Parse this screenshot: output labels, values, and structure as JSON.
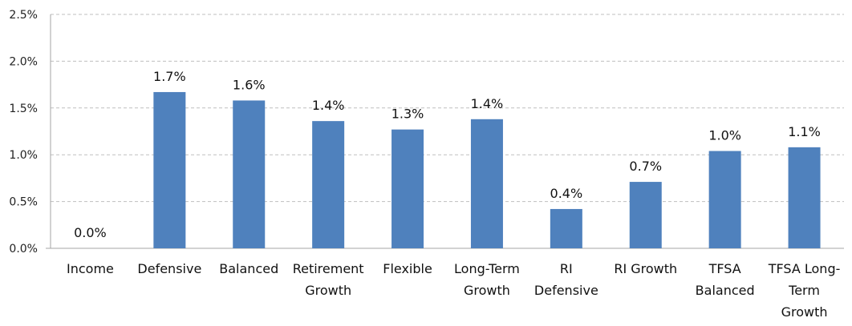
{
  "chart_data": {
    "type": "bar",
    "categories": [
      [
        "Income"
      ],
      [
        "Defensive"
      ],
      [
        "Balanced"
      ],
      [
        "Retirement",
        "Growth"
      ],
      [
        "Flexible"
      ],
      [
        "Long-Term",
        "Growth"
      ],
      [
        "RI",
        "Defensive"
      ],
      [
        "RI Growth"
      ],
      [
        "TFSA",
        "Balanced"
      ],
      [
        "TFSA Long-",
        "Term",
        "Growth"
      ]
    ],
    "values": [
      0.0,
      1.67,
      1.58,
      1.36,
      1.27,
      1.38,
      0.42,
      0.71,
      1.04,
      1.08
    ],
    "data_labels": [
      "0.0%",
      "1.7%",
      "1.6%",
      "1.4%",
      "1.3%",
      "1.4%",
      "0.4%",
      "0.7%",
      "1.0%",
      "1.1%"
    ],
    "y_ticks": [
      "0.0%",
      "0.5%",
      "1.0%",
      "1.5%",
      "2.0%",
      "2.5%"
    ],
    "y_tick_values": [
      0,
      0.5,
      1.0,
      1.5,
      2.0,
      2.5
    ],
    "ylim": [
      0,
      2.5
    ],
    "grid": "horizontal dashed",
    "legend": "none",
    "colors": {
      "bar": "#4F81BD",
      "grid": "#BFBFBF",
      "axis": "#A6A6A6"
    }
  }
}
